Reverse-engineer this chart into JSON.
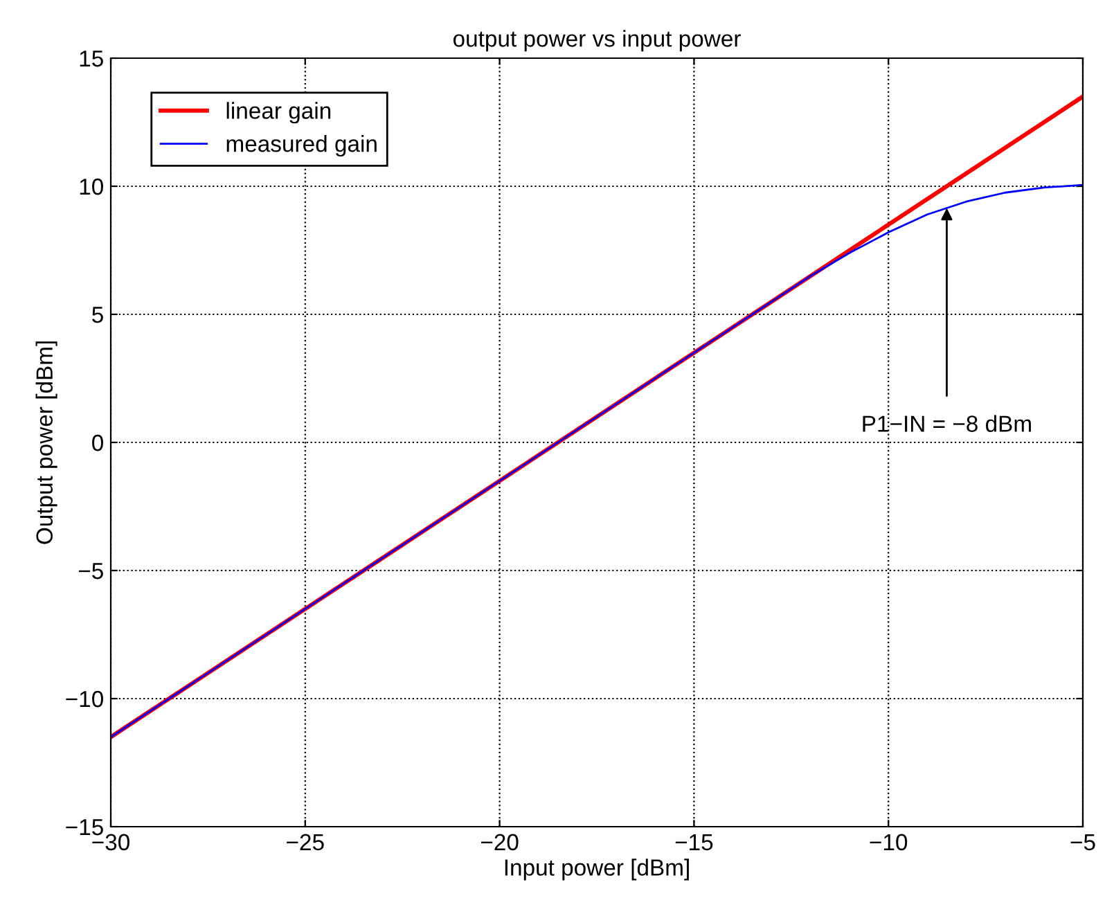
{
  "chart_data": {
    "type": "line",
    "title": "output power vs input power",
    "xlabel": "Input power [dBm]",
    "ylabel": "Output power [dBm]",
    "series": [
      {
        "name": "linear gain",
        "color": "#ff0000",
        "x": [
          -30,
          -5
        ],
        "values": [
          -11.5,
          13.5
        ]
      },
      {
        "name": "measured gain",
        "color": "#0000ff",
        "x": [
          -30,
          -12,
          -11,
          -10,
          -9,
          -8.5,
          -8,
          -7,
          -6,
          -5
        ],
        "values": [
          -11.5,
          6.5,
          7.4,
          8.2,
          8.9,
          9.15,
          9.4,
          9.75,
          9.95,
          10.05
        ]
      }
    ],
    "annotations": [
      {
        "text": "P1−IN = −8 dBm",
        "x": -8.5,
        "y": 9.15
      }
    ],
    "xlim": [
      -30,
      -5
    ],
    "ylim": [
      -15,
      15
    ],
    "xticks": [
      -30,
      -25,
      -20,
      -15,
      -10,
      -5
    ],
    "yticks": [
      -15,
      -10,
      -5,
      0,
      5,
      10,
      15
    ],
    "grid": true,
    "legend": "top left",
    "marker": "none",
    "line_style": "solid"
  }
}
